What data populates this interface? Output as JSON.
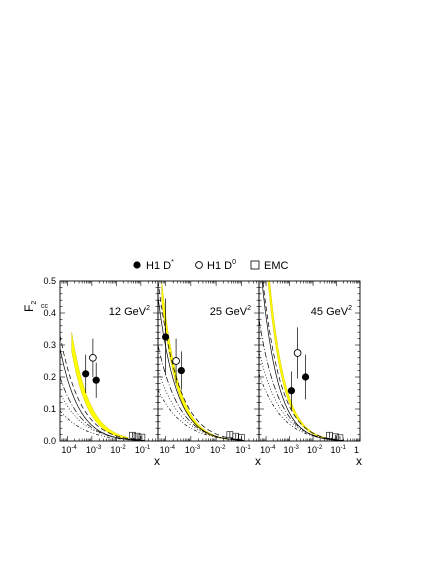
{
  "legend": {
    "h1_dstar": {
      "text": "H1 D",
      "sup": "*"
    },
    "h1_d0": {
      "text": "H1 D",
      "sup": "0"
    },
    "emc": {
      "text": "EMC"
    }
  },
  "ylabel": {
    "main": "F",
    "sub": "2",
    "sup": "cc"
  },
  "xlabel": "x",
  "colors": {
    "band": "#ffff00",
    "band_edge": "#d6c400",
    "axis": "#000000"
  },
  "chart_data": [
    {
      "type": "scatter",
      "title": "12 GeV",
      "title_sup": "2",
      "xscale": "log",
      "xlim": [
        5e-05,
        0.5
      ],
      "ylim": [
        0,
        0.5
      ],
      "xticks": [
        {
          "v": 0.0001,
          "label": "10",
          "exp": "-4"
        },
        {
          "v": 0.001,
          "label": "10",
          "exp": "-3"
        },
        {
          "v": 0.01,
          "label": "10",
          "exp": "-2"
        },
        {
          "v": 0.1,
          "label": "10",
          "exp": "-1"
        }
      ],
      "yticks": [
        0.0,
        0.1,
        0.2,
        0.3,
        0.4,
        0.5
      ],
      "ytick_labels": [
        "0.0",
        "0.1",
        "0.2",
        "0.3",
        "0.4",
        "0.5"
      ],
      "series": [
        {
          "name": "H1 D*",
          "marker": "filled-circle",
          "points": [
            {
              "x": 0.00056,
              "y": 0.21,
              "err": 0.06
            },
            {
              "x": 0.0015,
              "y": 0.19,
              "err": 0.055
            }
          ]
        },
        {
          "name": "H1 D0",
          "marker": "open-circle",
          "points": [
            {
              "x": 0.0011,
              "y": 0.26,
              "err": 0.06
            }
          ]
        },
        {
          "name": "EMC",
          "marker": "open-square",
          "points": [
            {
              "x": 0.045,
              "y": 0.018,
              "err": 0.008
            },
            {
              "x": 0.07,
              "y": 0.015,
              "err": 0.007
            },
            {
              "x": 0.11,
              "y": 0.012,
              "err": 0.006
            }
          ]
        }
      ],
      "band": {
        "xrange": [
          0.00015,
          0.03
        ],
        "upper": {
          "a": 0.34,
          "x0": 0.00015,
          "k": 0.5
        },
        "lower": {
          "a": 0.28,
          "x0": 0.00015,
          "k": 0.55
        }
      },
      "curves": [
        {
          "style": "solid",
          "a": 0.29,
          "x0": 5e-05,
          "k": 0.47,
          "xend": 0.12
        },
        {
          "style": "dashed",
          "a": 0.33,
          "x0": 5e-05,
          "k": 0.42,
          "xend": 0.12
        },
        {
          "style": "dashdot",
          "a": 0.2,
          "x0": 5e-05,
          "k": 0.4,
          "xend": 0.12
        },
        {
          "style": "dotted",
          "a": 0.15,
          "x0": 5e-05,
          "k": 0.35,
          "xend": 0.12
        },
        {
          "style": "dashdot2",
          "a": 0.095,
          "x0": 5e-05,
          "k": 0.32,
          "xend": 0.12
        }
      ]
    },
    {
      "type": "scatter",
      "title": "25 GeV",
      "title_sup": "2",
      "xscale": "log",
      "xlim": [
        5e-05,
        0.5
      ],
      "ylim": [
        0,
        0.5
      ],
      "xticks": [
        {
          "v": 0.0001,
          "label": "10",
          "exp": "-4"
        },
        {
          "v": 0.001,
          "label": "10",
          "exp": "-3"
        },
        {
          "v": 0.01,
          "label": "10",
          "exp": "-2"
        },
        {
          "v": 0.1,
          "label": "10",
          "exp": "-1"
        }
      ],
      "series": [
        {
          "name": "H1 D*",
          "marker": "filled-circle",
          "points": [
            {
              "x": 0.0001,
              "y": 0.325,
              "err": 0.12
            },
            {
              "x": 0.00042,
              "y": 0.22,
              "err": 0.06
            }
          ]
        },
        {
          "name": "H1 D0",
          "marker": "open-circle",
          "points": [
            {
              "x": 0.00026,
              "y": 0.25,
              "err": 0.07
            }
          ]
        },
        {
          "name": "EMC",
          "marker": "open-square",
          "points": [
            {
              "x": 0.035,
              "y": 0.02,
              "err": 0.008
            },
            {
              "x": 0.06,
              "y": 0.015,
              "err": 0.007
            },
            {
              "x": 0.1,
              "y": 0.011,
              "err": 0.006
            }
          ]
        }
      ],
      "band": {
        "xrange": [
          7e-05,
          0.03
        ],
        "upper": {
          "a": 0.5,
          "x0": 7e-05,
          "k": 0.55
        },
        "lower": {
          "a": 0.44,
          "x0": 7e-05,
          "k": 0.58
        }
      },
      "curves": [
        {
          "style": "solid",
          "a": 0.45,
          "x0": 5e-05,
          "k": 0.5,
          "xend": 0.12
        },
        {
          "style": "dashed",
          "a": 0.5,
          "x0": 5e-05,
          "k": 0.44,
          "xend": 0.12
        },
        {
          "style": "dashdot",
          "a": 0.3,
          "x0": 5e-05,
          "k": 0.42,
          "xend": 0.12
        },
        {
          "style": "dotted",
          "a": 0.22,
          "x0": 5e-05,
          "k": 0.37,
          "xend": 0.12
        },
        {
          "style": "dashdot2",
          "a": 0.16,
          "x0": 5e-05,
          "k": 0.34,
          "xend": 0.12
        }
      ]
    },
    {
      "type": "scatter",
      "title": "45 GeV",
      "title_sup": "2",
      "xscale": "log",
      "xlim": [
        5e-05,
        1
      ],
      "ylim": [
        0,
        0.5
      ],
      "xticks": [
        {
          "v": 0.0001,
          "label": "10",
          "exp": "-4"
        },
        {
          "v": 0.001,
          "label": "10",
          "exp": "-3"
        },
        {
          "v": 0.01,
          "label": "10",
          "exp": "-2"
        },
        {
          "v": 0.1,
          "label": "10",
          "exp": "-1"
        },
        {
          "v": 1,
          "label": "1",
          "exp": ""
        }
      ],
      "series": [
        {
          "name": "H1 D*",
          "marker": "filled-circle",
          "points": [
            {
              "x": 0.0012,
              "y": 0.157,
              "err": 0.06
            },
            {
              "x": 0.0048,
              "y": 0.2,
              "err": 0.07
            }
          ]
        },
        {
          "name": "H1 D0",
          "marker": "open-circle",
          "points": [
            {
              "x": 0.0022,
              "y": 0.275,
              "err": 0.08
            }
          ]
        },
        {
          "name": "EMC",
          "marker": "open-square",
          "points": [
            {
              "x": 0.05,
              "y": 0.018,
              "err": 0.008
            },
            {
              "x": 0.09,
              "y": 0.013,
              "err": 0.006
            },
            {
              "x": 0.14,
              "y": 0.01,
              "err": 0.005
            }
          ]
        }
      ],
      "band": {
        "xrange": [
          0.00012,
          0.05
        ],
        "upper": {
          "a": 0.56,
          "x0": 0.00012,
          "k": 0.55
        },
        "lower": {
          "a": 0.5,
          "x0": 0.00012,
          "k": 0.57
        }
      },
      "curves": [
        {
          "style": "solid",
          "a": 0.6,
          "x0": 5e-05,
          "k": 0.52,
          "xend": 0.2
        },
        {
          "style": "dashed",
          "a": 0.62,
          "x0": 5e-05,
          "k": 0.46,
          "xend": 0.2
        },
        {
          "style": "dashdot",
          "a": 0.38,
          "x0": 5e-05,
          "k": 0.42,
          "xend": 0.2
        },
        {
          "style": "dotted",
          "a": 0.28,
          "x0": 5e-05,
          "k": 0.37,
          "xend": 0.2
        },
        {
          "style": "dashdot2",
          "a": 0.21,
          "x0": 5e-05,
          "k": 0.34,
          "xend": 0.2
        }
      ]
    }
  ]
}
